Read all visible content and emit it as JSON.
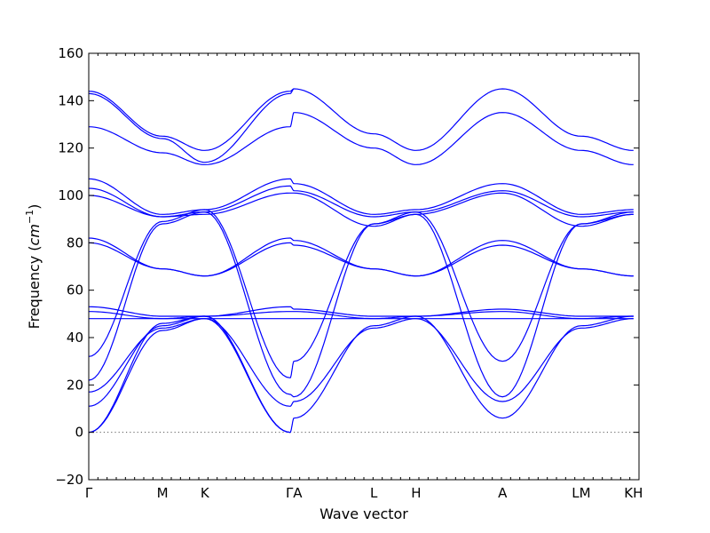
{
  "chart_data": {
    "type": "line",
    "title": "",
    "xlabel": "Wave vector",
    "ylabel": "Frequency",
    "ylabel_unit": "cm",
    "ylabel_exponent": "−1",
    "ylim": [
      -20,
      160
    ],
    "xlim": [
      0,
      1
    ],
    "y_ticks": [
      "−20",
      "0",
      "20",
      "40",
      "60",
      "80",
      "100",
      "120",
      "140",
      "160"
    ],
    "y_tick_values": [
      -20,
      0,
      20,
      40,
      60,
      80,
      100,
      120,
      140,
      160
    ],
    "x_ticks": [
      {
        "label": "Γ",
        "pos": 0.0
      },
      {
        "label": "M",
        "pos": 0.134
      },
      {
        "label": "K",
        "pos": 0.211
      },
      {
        "label": "ΓA",
        "pos": 0.373
      },
      {
        "label": "L",
        "pos": 0.518
      },
      {
        "label": "H",
        "pos": 0.595
      },
      {
        "label": "A",
        "pos": 0.752
      },
      {
        "label": "LM",
        "pos": 0.895
      },
      {
        "label": "KH",
        "pos": 0.99
      }
    ],
    "line_color": "#0000ff",
    "zero_line": true,
    "grid": false,
    "series": [
      {
        "x": [
          0,
          0.134,
          0.211,
          0.366,
          0.373
        ],
        "y": [
          144,
          125,
          119,
          144,
          145
        ]
      },
      {
        "x": [
          0,
          0.134,
          0.211,
          0.366,
          0.373
        ],
        "y": [
          143,
          124,
          114,
          143,
          145
        ]
      },
      {
        "x": [
          0,
          0.134,
          0.211,
          0.366,
          0.373
        ],
        "y": [
          129,
          118,
          113,
          129,
          135
        ]
      },
      {
        "x": [
          0.373,
          0.518,
          0.595,
          0.752,
          0.895,
          0.99
        ],
        "y": [
          145,
          126,
          119,
          145,
          125,
          119
        ]
      },
      {
        "x": [
          0.373,
          0.518,
          0.595,
          0.752,
          0.895,
          0.99
        ],
        "y": [
          135,
          120,
          113,
          135,
          119,
          113
        ]
      },
      {
        "x": [
          0,
          0.134,
          0.211,
          0.366,
          0.373,
          0.518,
          0.595,
          0.752,
          0.895,
          0.99
        ],
        "y": [
          107,
          92,
          94,
          107,
          105,
          92,
          94,
          105,
          92,
          94
        ]
      },
      {
        "x": [
          0,
          0.134,
          0.211,
          0.366,
          0.373,
          0.518,
          0.595,
          0.752,
          0.895,
          0.99
        ],
        "y": [
          103,
          91,
          93,
          104,
          102,
          91,
          93,
          102,
          91,
          93
        ]
      },
      {
        "x": [
          0,
          0.134,
          0.211,
          0.366,
          0.373,
          0.518,
          0.595,
          0.752,
          0.895,
          0.99
        ],
        "y": [
          100,
          91,
          92,
          101,
          101,
          87,
          92,
          101,
          87,
          92
        ]
      },
      {
        "x": [
          0,
          0.134,
          0.211,
          0.366,
          0.373,
          0.518,
          0.595,
          0.752,
          0.895,
          0.99
        ],
        "y": [
          82,
          69,
          66,
          82,
          81,
          69,
          66,
          81,
          69,
          66
        ]
      },
      {
        "x": [
          0,
          0.134,
          0.211,
          0.366,
          0.373,
          0.518,
          0.595,
          0.752,
          0.895,
          0.99
        ],
        "y": [
          80,
          69,
          66,
          80,
          79,
          69,
          66,
          79,
          69,
          66
        ]
      },
      {
        "x": [
          0,
          0.134,
          0.211,
          0.366,
          0.373,
          0.518,
          0.595,
          0.752,
          0.895,
          0.99
        ],
        "y": [
          53,
          49,
          49,
          53,
          52,
          49,
          49,
          52,
          49,
          49
        ]
      },
      {
        "x": [
          0,
          0.134,
          0.211,
          0.366,
          0.373,
          0.518,
          0.595,
          0.752,
          0.895,
          0.99
        ],
        "y": [
          51,
          48,
          49,
          51,
          51,
          48,
          49,
          51,
          48,
          49
        ]
      },
      {
        "x": [
          0,
          0.134,
          0.211,
          0.366,
          0.373,
          0.518,
          0.595,
          0.752,
          0.895,
          0.99
        ],
        "y": [
          48,
          48,
          48,
          48,
          48,
          48,
          48,
          48,
          48,
          48
        ]
      },
      {
        "x": [
          0,
          0.134,
          0.211,
          0.366,
          0.373,
          0.518,
          0.595,
          0.752,
          0.895,
          0.99
        ],
        "y": [
          32,
          89,
          94,
          23,
          30,
          88,
          93,
          30,
          88,
          93
        ]
      },
      {
        "x": [
          0,
          0.134,
          0.211,
          0.366,
          0.373,
          0.518,
          0.595,
          0.752,
          0.895,
          0.99
        ],
        "y": [
          22,
          88,
          93,
          16,
          15,
          88,
          92,
          15,
          88,
          92
        ]
      },
      {
        "x": [
          0,
          0.134,
          0.211,
          0.366,
          0.373,
          0.518,
          0.595,
          0.752,
          0.895,
          0.99
        ],
        "y": [
          17,
          44,
          48,
          11,
          13,
          44,
          48,
          13,
          44,
          48
        ]
      },
      {
        "x": [
          0,
          0.134,
          0.211,
          0.366,
          0.373,
          0.518,
          0.595,
          0.752,
          0.895,
          0.99
        ],
        "y": [
          11,
          45,
          49,
          0,
          6,
          45,
          49,
          6,
          45,
          49
        ]
      },
      {
        "x": [
          0,
          0.134,
          0.211,
          0.366
        ],
        "y": [
          0,
          43,
          48,
          0
        ]
      },
      {
        "x": [
          0,
          0.134,
          0.211,
          0.366
        ],
        "y": [
          0,
          46,
          49,
          0
        ]
      }
    ]
  }
}
